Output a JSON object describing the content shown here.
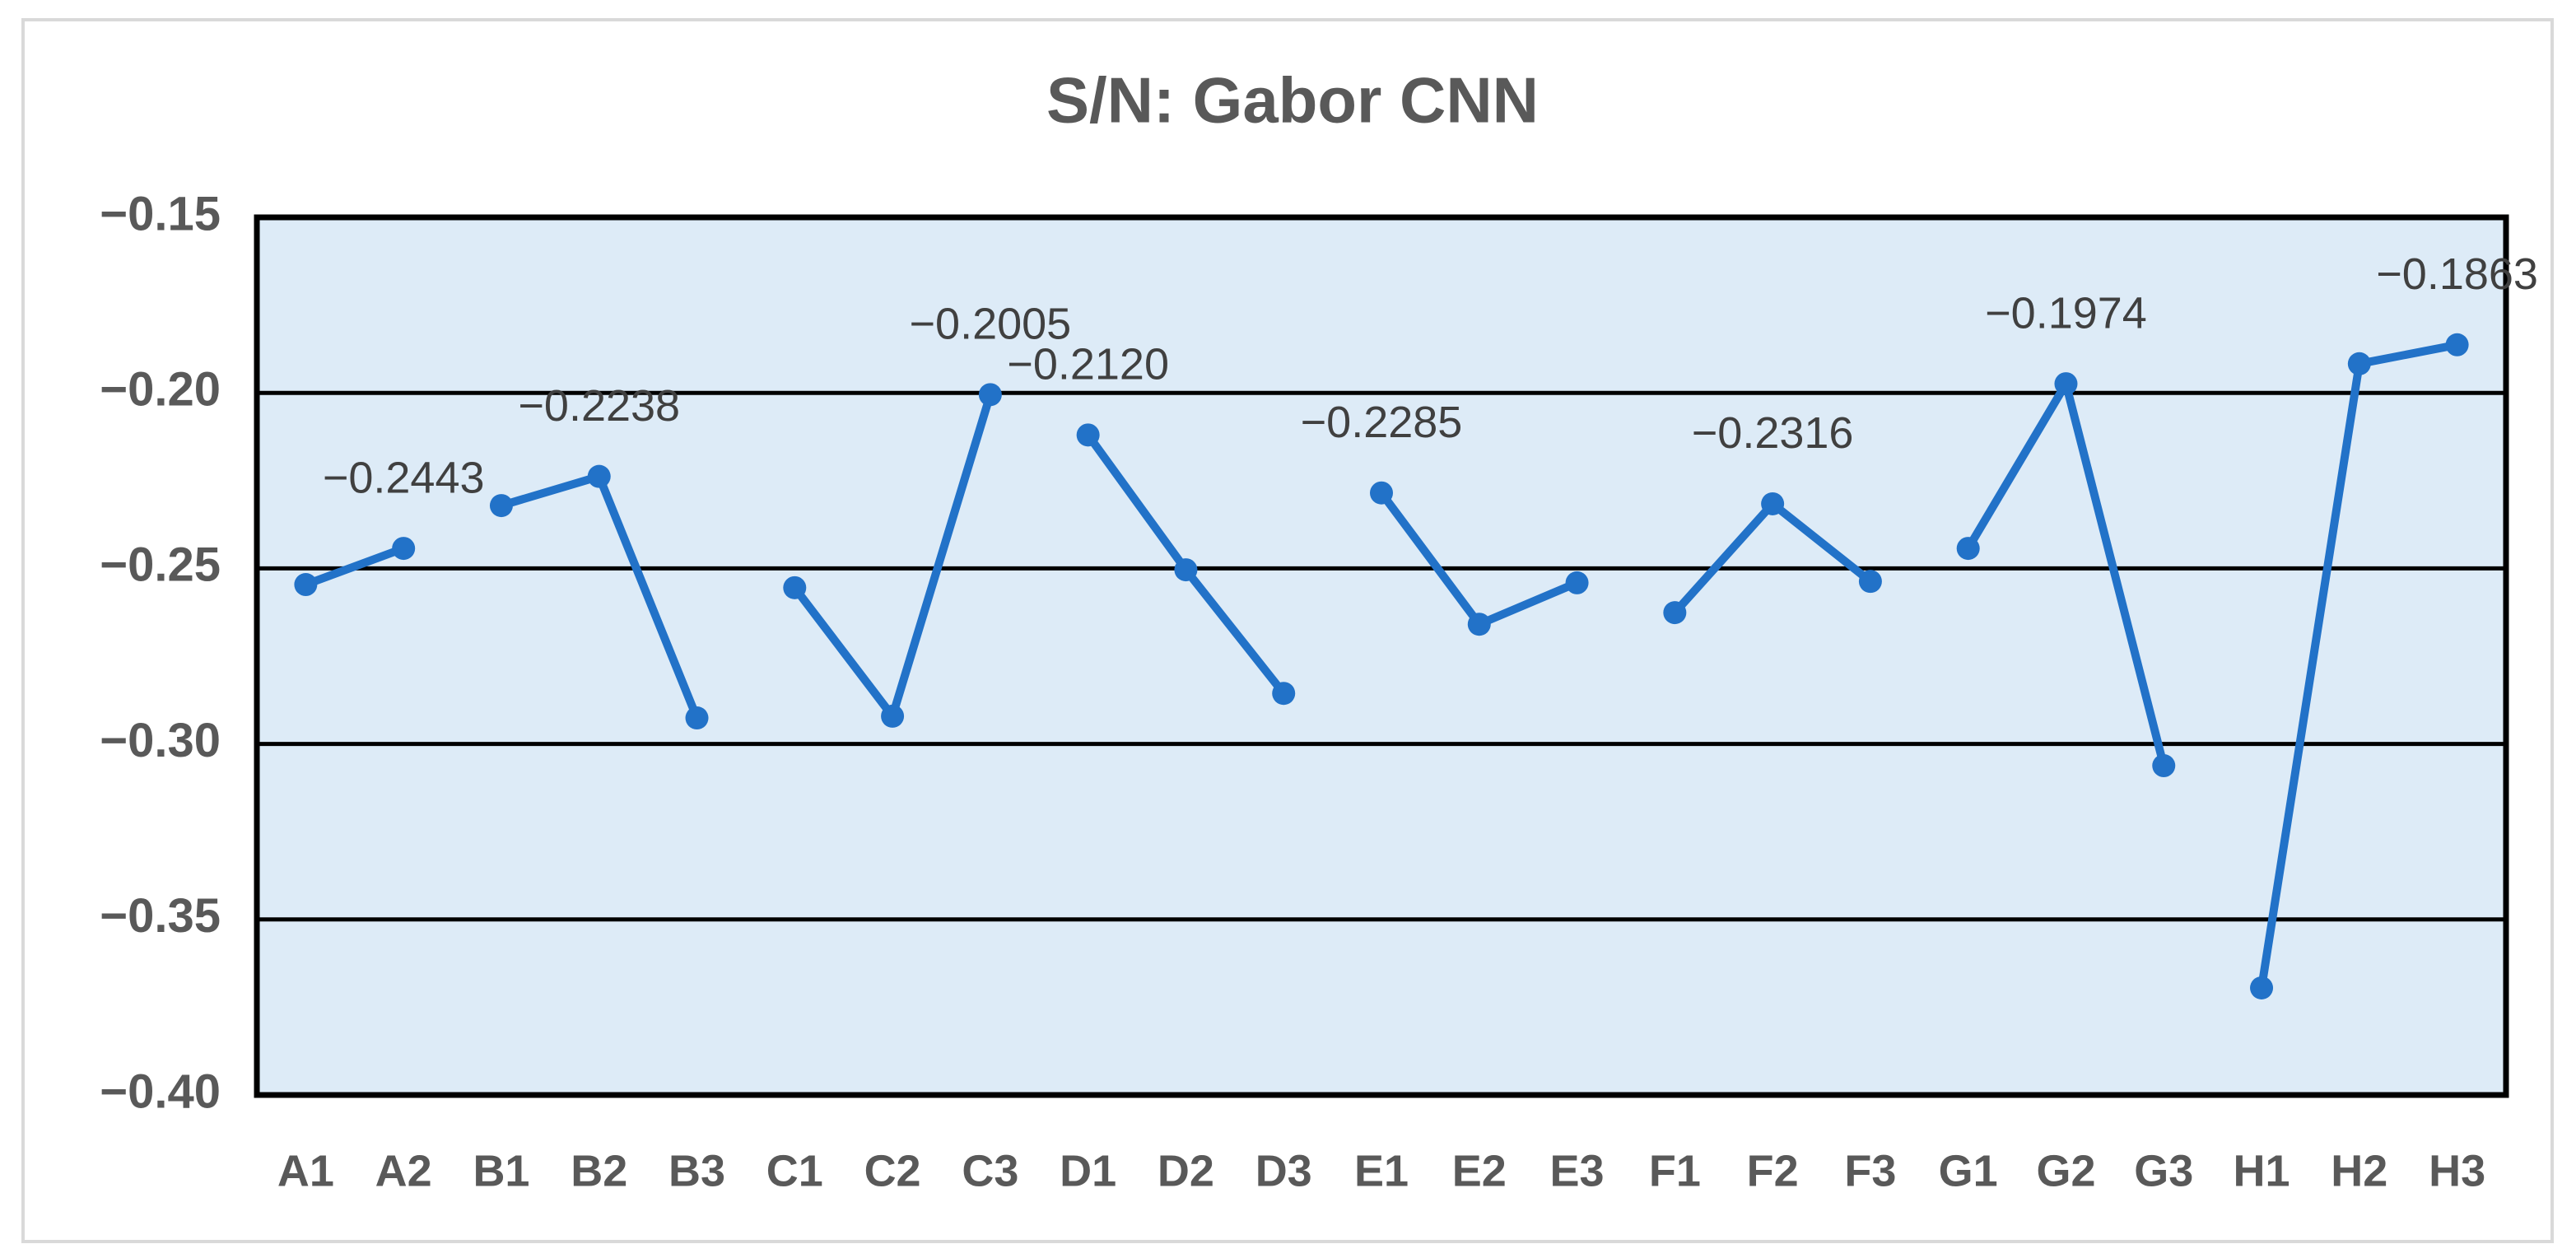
{
  "chart_data": {
    "type": "line",
    "title": "S/N: Gabor CNN",
    "categories": [
      "A1",
      "A2",
      "B1",
      "B2",
      "B3",
      "C1",
      "C2",
      "C3",
      "D1",
      "D2",
      "D3",
      "E1",
      "E2",
      "E3",
      "F1",
      "F2",
      "F3",
      "G1",
      "G2",
      "G3",
      "H1",
      "H2",
      "H3"
    ],
    "series": [
      {
        "color": "#2272c8",
        "values": [
          -0.2546,
          -0.2443,
          null,
          null,
          null,
          null,
          null,
          null,
          null,
          null,
          null,
          null,
          null,
          null,
          null,
          null,
          null,
          null,
          null,
          null,
          null,
          null,
          null
        ],
        "value_labels": [
          null,
          "−0.2443",
          null,
          null,
          null,
          null,
          null,
          null,
          null,
          null,
          null,
          null,
          null,
          null,
          null,
          null,
          null,
          null,
          null,
          null,
          null,
          null,
          null
        ]
      },
      {
        "color": "#2272c8",
        "values": [
          null,
          null,
          -0.2321,
          -0.2238,
          -0.2926,
          null,
          null,
          null,
          null,
          null,
          null,
          null,
          null,
          null,
          null,
          null,
          null,
          null,
          null,
          null,
          null,
          null,
          null
        ],
        "value_labels": [
          null,
          null,
          null,
          "−0.2238",
          null,
          null,
          null,
          null,
          null,
          null,
          null,
          null,
          null,
          null,
          null,
          null,
          null,
          null,
          null,
          null,
          null,
          null,
          null
        ]
      },
      {
        "color": "#2272c8",
        "values": [
          null,
          null,
          null,
          null,
          null,
          -0.2555,
          -0.2921,
          -0.2005,
          null,
          null,
          null,
          null,
          null,
          null,
          null,
          null,
          null,
          null,
          null,
          null,
          null,
          null,
          null
        ],
        "value_labels": [
          null,
          null,
          null,
          null,
          null,
          null,
          null,
          "−0.2005",
          null,
          null,
          null,
          null,
          null,
          null,
          null,
          null,
          null,
          null,
          null,
          null,
          null,
          null,
          null
        ]
      },
      {
        "color": "#2272c8",
        "values": [
          null,
          null,
          null,
          null,
          null,
          null,
          null,
          null,
          -0.212,
          -0.2504,
          -0.2856,
          null,
          null,
          null,
          null,
          null,
          null,
          null,
          null,
          null,
          null,
          null,
          null
        ],
        "value_labels": [
          null,
          null,
          null,
          null,
          null,
          null,
          null,
          null,
          "−0.2120",
          null,
          null,
          null,
          null,
          null,
          null,
          null,
          null,
          null,
          null,
          null,
          null,
          null,
          null
        ]
      },
      {
        "color": "#2272c8",
        "values": [
          null,
          null,
          null,
          null,
          null,
          null,
          null,
          null,
          null,
          null,
          null,
          -0.2285,
          -0.2659,
          -0.2541,
          null,
          null,
          null,
          null,
          null,
          null,
          null,
          null,
          null
        ],
        "value_labels": [
          null,
          null,
          null,
          null,
          null,
          null,
          null,
          null,
          null,
          null,
          null,
          "−0.2285",
          null,
          null,
          null,
          null,
          null,
          null,
          null,
          null,
          null,
          null,
          null
        ]
      },
      {
        "color": "#2272c8",
        "values": [
          null,
          null,
          null,
          null,
          null,
          null,
          null,
          null,
          null,
          null,
          null,
          null,
          null,
          null,
          -0.2626,
          -0.2316,
          -0.2537,
          null,
          null,
          null,
          null,
          null,
          null
        ],
        "value_labels": [
          null,
          null,
          null,
          null,
          null,
          null,
          null,
          null,
          null,
          null,
          null,
          null,
          null,
          null,
          null,
          "−0.2316",
          null,
          null,
          null,
          null,
          null,
          null,
          null
        ]
      },
      {
        "color": "#2272c8",
        "values": [
          null,
          null,
          null,
          null,
          null,
          null,
          null,
          null,
          null,
          null,
          null,
          null,
          null,
          null,
          null,
          null,
          null,
          -0.2443,
          -0.1974,
          -0.3062,
          null,
          null,
          null
        ],
        "value_labels": [
          null,
          null,
          null,
          null,
          null,
          null,
          null,
          null,
          null,
          null,
          null,
          null,
          null,
          null,
          null,
          null,
          null,
          null,
          "−0.1974",
          null,
          null,
          null,
          null
        ]
      },
      {
        "color": "#2272c8",
        "values": [
          null,
          null,
          null,
          null,
          null,
          null,
          null,
          null,
          null,
          null,
          null,
          null,
          null,
          null,
          null,
          null,
          null,
          null,
          null,
          null,
          -0.3695,
          -0.1917,
          -0.1863
        ],
        "value_labels": [
          null,
          null,
          null,
          null,
          null,
          null,
          null,
          null,
          null,
          null,
          null,
          null,
          null,
          null,
          null,
          null,
          null,
          null,
          null,
          null,
          null,
          null,
          "−0.1863"
        ]
      }
    ],
    "ylim": [
      -0.4,
      -0.15
    ],
    "yticks": [
      {
        "value": -0.4,
        "label": "−0.40"
      },
      {
        "value": -0.35,
        "label": "−0.35"
      },
      {
        "value": -0.3,
        "label": "−0.30"
      },
      {
        "value": -0.25,
        "label": "−0.25"
      },
      {
        "value": -0.2,
        "label": "−0.20"
      },
      {
        "value": -0.15,
        "label": "−0.15"
      }
    ],
    "grid": true,
    "plot_background": "#ddebf7"
  }
}
